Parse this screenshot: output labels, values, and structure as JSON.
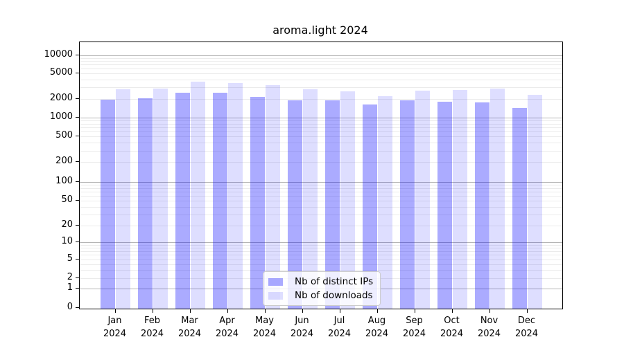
{
  "title": "aroma.light 2024",
  "legend": {
    "items": [
      {
        "label": "Nb of distinct IPs",
        "color": "rgba(0,0,255,0.33)"
      },
      {
        "label": "Nb of downloads",
        "color": "rgba(0,0,255,0.13)"
      }
    ],
    "position": "lower center"
  },
  "chart_data": {
    "type": "bar",
    "title": "aroma.light 2024",
    "categories": [
      "Jan 2024",
      "Feb 2024",
      "Mar 2024",
      "Apr 2024",
      "May 2024",
      "Jun 2024",
      "Jul 2024",
      "Aug 2024",
      "Sep 2024",
      "Oct 2024",
      "Nov 2024",
      "Dec 2024"
    ],
    "series": [
      {
        "name": "Nb of distinct IPs",
        "color": "rgba(0,0,255,0.33)",
        "values": [
          1930,
          2030,
          2500,
          2520,
          2150,
          1890,
          1920,
          1640,
          1890,
          1820,
          1750,
          1430
        ]
      },
      {
        "name": "Nb of downloads",
        "color": "rgba(0,0,255,0.13)",
        "values": [
          2800,
          2920,
          3700,
          3550,
          3250,
          2790,
          2610,
          2220,
          2670,
          2740,
          2890,
          2320
        ]
      }
    ],
    "xlabel": "",
    "ylabel": "",
    "y_ticks": [
      0,
      1,
      2,
      5,
      10,
      20,
      50,
      100,
      200,
      500,
      1000,
      2000,
      5000,
      10000
    ],
    "y_scale": "symlog",
    "ylim": [
      0,
      14000
    ],
    "grid": "horizontal log major+minor",
    "legend_position": "lower center"
  }
}
